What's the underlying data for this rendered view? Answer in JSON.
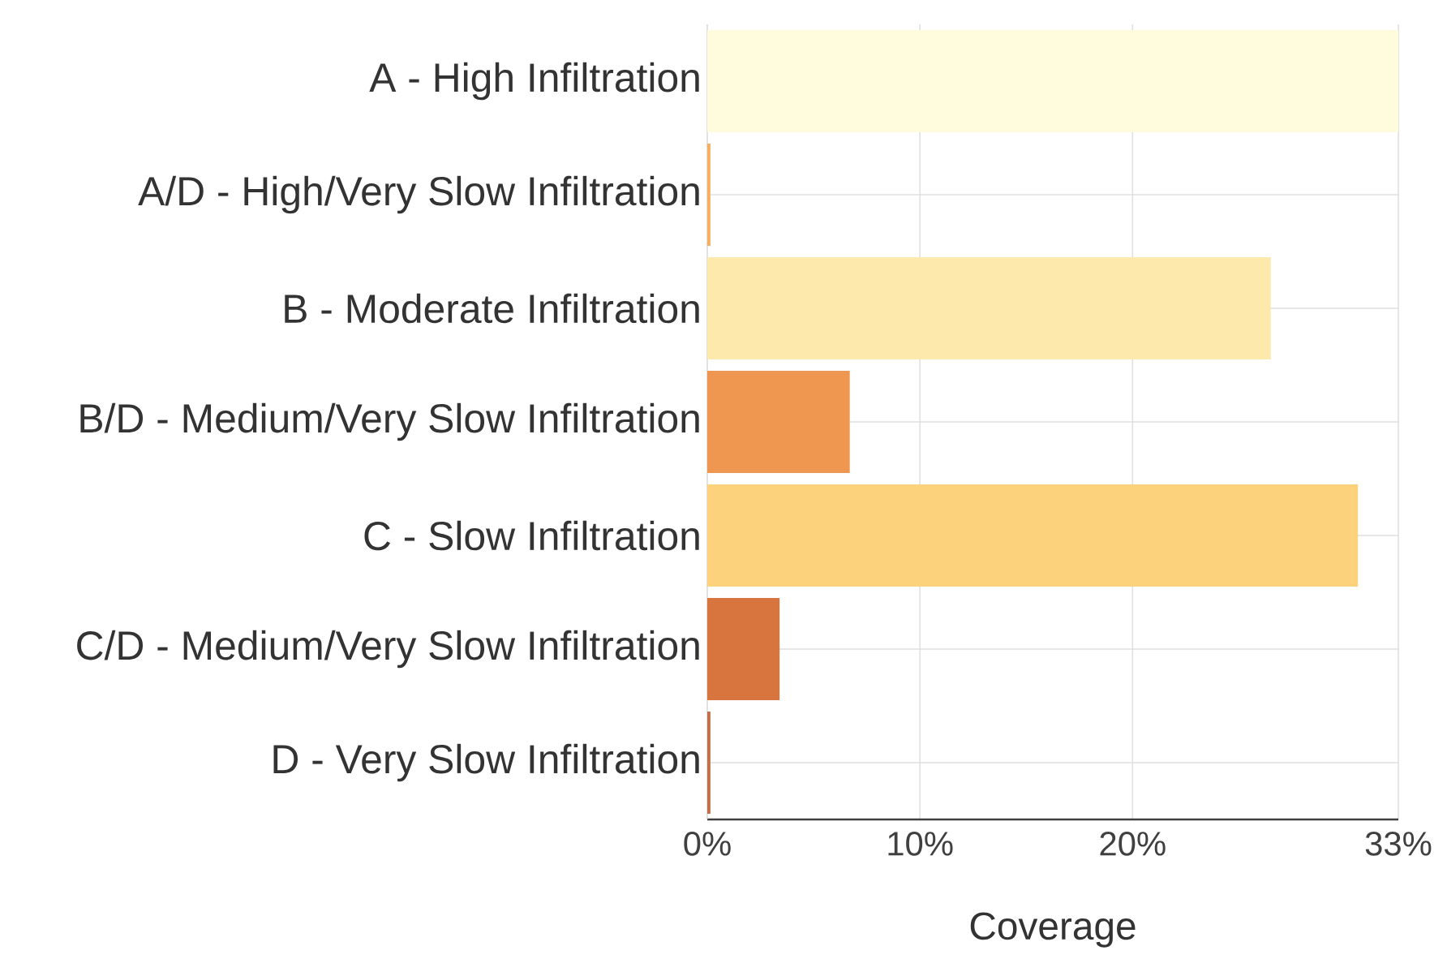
{
  "chart_data": {
    "type": "bar",
    "orientation": "horizontal",
    "xlabel": "Coverage",
    "categories": [
      "A - High Infiltration",
      "A/D - High/Very Slow Infiltration",
      "B - Moderate Infiltration",
      "B/D - Medium/Very Slow Infiltration",
      "C - Slow Infiltration",
      "C/D - Medium/Very Slow Infiltration",
      "D - Very Slow Infiltration"
    ],
    "values": [
      32.5,
      0.15,
      26.5,
      6.7,
      30.6,
      3.4,
      0.15
    ],
    "colors": [
      "#fefcdc",
      "#f8b060",
      "#fde9ab",
      "#ef9650",
      "#fdd27c",
      "#d8743e",
      "#c0704a"
    ],
    "xlim": [
      0,
      32.5
    ],
    "xticks": [
      {
        "value": 0,
        "label": "0%"
      },
      {
        "value": 10,
        "label": "10%"
      },
      {
        "value": 20,
        "label": "20%"
      },
      {
        "value": 32.5,
        "label": "33%"
      }
    ],
    "grid": true
  }
}
